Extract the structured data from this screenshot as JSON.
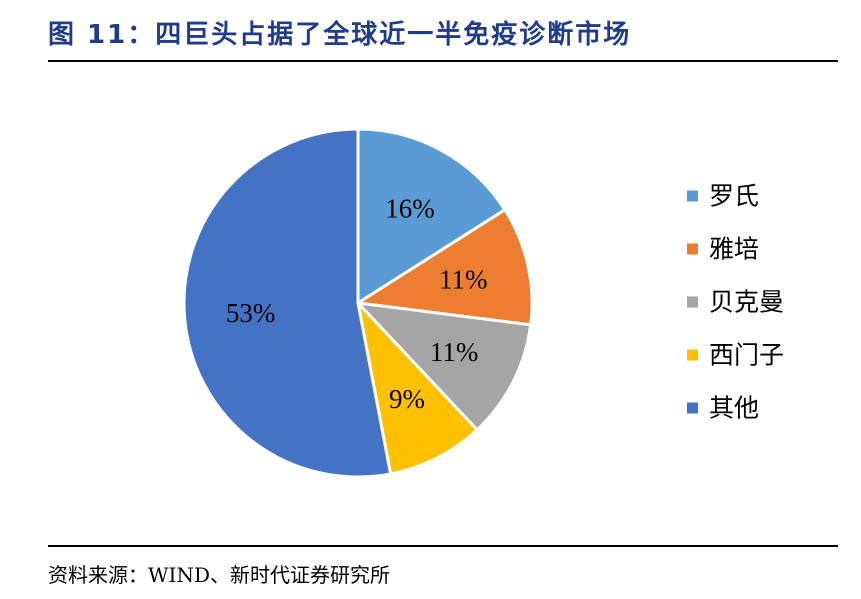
{
  "figure": {
    "title": "图 11：四巨头占据了全球近一半免疫诊断市场",
    "source": "资料来源：WIND、新时代证券研究所"
  },
  "chart_data": {
    "type": "pie",
    "title": "",
    "legend_position": "right",
    "slices": [
      {
        "name": "罗氏",
        "value": 16,
        "label": "16%",
        "color": "#5b9bd5"
      },
      {
        "name": "雅培",
        "value": 11,
        "label": "11%",
        "color": "#ed7d31"
      },
      {
        "name": "贝克曼",
        "value": 11,
        "label": "11%",
        "color": "#a5a5a5"
      },
      {
        "name": "西门子",
        "value": 9,
        "label": "9%",
        "color": "#ffc000"
      },
      {
        "name": "其他",
        "value": 53,
        "label": "53%",
        "color": "#4472c4"
      }
    ]
  }
}
